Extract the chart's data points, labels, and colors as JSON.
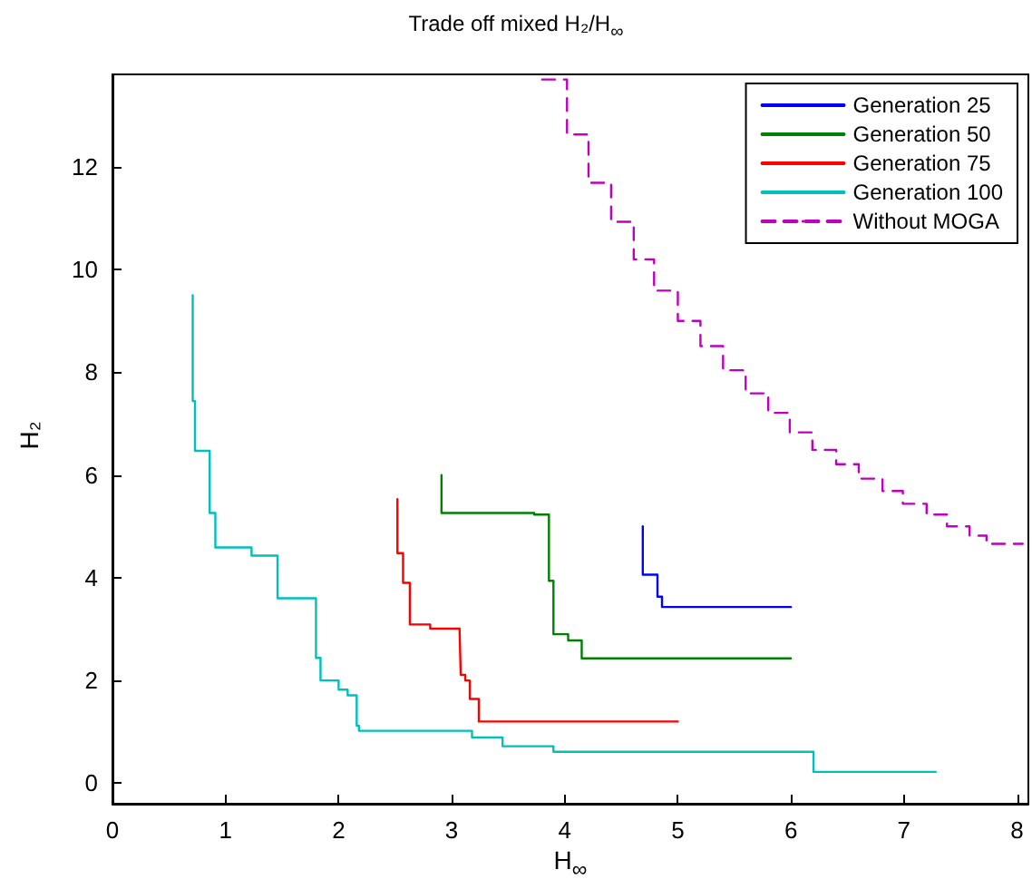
{
  "chart_data": {
    "type": "step",
    "title": "Trade off mixed H₂/H$_{∞}$",
    "xlabel": "H$_{∞}$",
    "ylabel": "H₂",
    "xlim": [
      0,
      8.1
    ],
    "xticks": [
      0,
      1,
      2,
      3,
      4,
      5,
      6,
      7,
      8
    ],
    "ylim": [
      -0.4,
      13.8
    ],
    "yticks": [
      0,
      2,
      4,
      6,
      8,
      10,
      12
    ],
    "legend": "top right",
    "marker": "none",
    "series": [
      {
        "name": "Generation 25",
        "color": "#0000ff",
        "x": [
          4.69,
          4.82,
          4.86,
          6.0
        ],
        "values": [
          5.0,
          4.06,
          3.63,
          3.43
        ]
      },
      {
        "name": "Generation 50",
        "color": "#008000",
        "x": [
          2.91,
          3.73,
          3.86,
          3.9,
          4.03,
          4.15,
          6.0
        ],
        "values": [
          6.0,
          5.26,
          5.23,
          3.94,
          2.9,
          2.78,
          2.43
        ]
      },
      {
        "name": "Generation 75",
        "color": "#ff0000",
        "x": [
          2.52,
          2.57,
          2.63,
          2.81,
          3.07,
          3.08,
          3.12,
          3.16,
          3.24,
          5.0
        ],
        "values": [
          5.53,
          4.48,
          3.9,
          3.09,
          3.01,
          2.95,
          2.11,
          2.0,
          1.64,
          1.2
        ]
      },
      {
        "name": "Generation 100",
        "color": "#00bfbf",
        "x": [
          0.71,
          0.73,
          0.86,
          0.91,
          1.23,
          1.46,
          1.8,
          1.84,
          2.0,
          2.08,
          2.16,
          2.18,
          3.18,
          3.45,
          3.9,
          6.2,
          7.28
        ],
        "values": [
          9.5,
          7.44,
          6.47,
          5.26,
          4.59,
          4.43,
          3.6,
          2.44,
          2.0,
          1.82,
          1.71,
          1.12,
          1.02,
          0.89,
          0.72,
          0.61,
          0.22
        ]
      },
      {
        "name": "Without MOGA",
        "color": "#bf00bf",
        "line_style": "dashed",
        "x": [
          3.8,
          4.02,
          4.21,
          4.41,
          4.61,
          4.79,
          5.0,
          5.2,
          5.4,
          5.6,
          5.8,
          5.99,
          6.19,
          6.4,
          6.6,
          6.81,
          6.99,
          7.2,
          7.38,
          7.58,
          7.73,
          8.05
        ],
        "values": [
          13.7,
          13.7,
          12.63,
          11.69,
          10.93,
          10.2,
          9.59,
          9.0,
          8.51,
          8.04,
          7.59,
          7.21,
          6.83,
          6.49,
          6.21,
          5.93,
          5.69,
          5.44,
          5.23,
          5.0,
          4.82,
          4.66
        ]
      }
    ]
  }
}
